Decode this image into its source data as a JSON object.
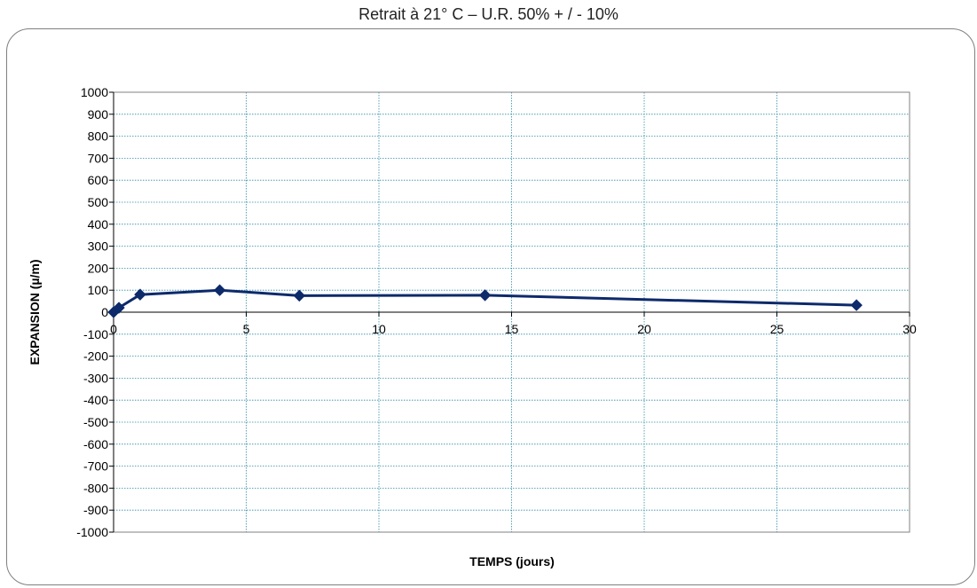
{
  "page": {
    "title": "Retrait  à 21° C – U.R.  50% + / - 10%"
  },
  "chart_data": {
    "type": "line",
    "title": "Retrait  à 21° C – U.R.  50% + / - 10%",
    "xlabel": "TEMPS  (jours)",
    "ylabel": "EXPANSION (µ/m)",
    "xlim": [
      0,
      30
    ],
    "ylim": [
      -1000,
      1000
    ],
    "x_ticks": [
      0,
      5,
      10,
      15,
      20,
      25,
      30
    ],
    "y_ticks": [
      1000,
      900,
      800,
      700,
      600,
      500,
      400,
      300,
      200,
      100,
      0,
      -100,
      -200,
      -300,
      -400,
      -500,
      -600,
      -700,
      -800,
      -900,
      -1000
    ],
    "grid": true,
    "legend": "none",
    "colors": {
      "series": "#0d2a6b",
      "grid": "#2e8aa3",
      "axis": "#000000"
    },
    "series": [
      {
        "x": [
          0,
          0.2,
          1,
          4,
          7,
          14,
          28
        ],
        "y": [
          0,
          20,
          80,
          100,
          75,
          77,
          32
        ]
      }
    ]
  }
}
